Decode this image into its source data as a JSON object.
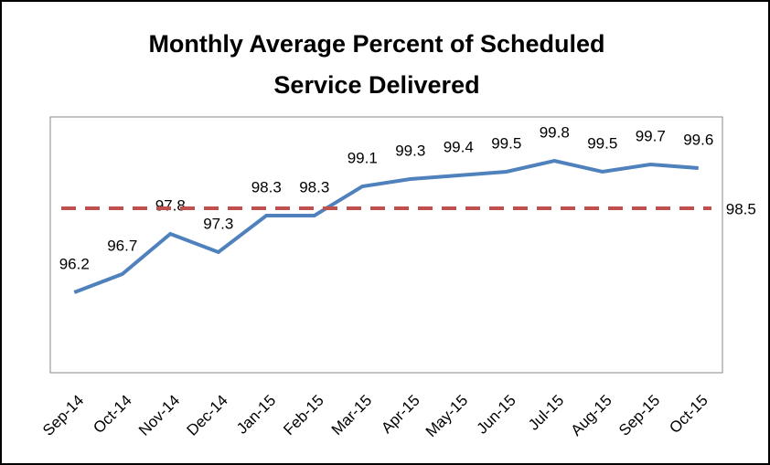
{
  "chart_data": {
    "type": "line",
    "title": [
      "Monthly Average Percent of Scheduled",
      "Service Delivered"
    ],
    "categories": [
      "Sep-14",
      "Oct-14",
      "Nov-14",
      "Dec-14",
      "Jan-15",
      "Feb-15",
      "Mar-15",
      "Apr-15",
      "May-15",
      "Jun-15",
      "Jul-15",
      "Aug-15",
      "Sep-15",
      "Oct-15"
    ],
    "series": [
      {
        "color": "#4f81bd",
        "dashed": false,
        "values": [
          96.2,
          96.7,
          97.8,
          97.3,
          98.3,
          98.3,
          99.1,
          99.3,
          99.4,
          99.5,
          99.8,
          99.5,
          99.7,
          99.6
        ]
      },
      {
        "color": "#c0504d",
        "dashed": true,
        "values": [
          98.5,
          98.5,
          98.5,
          98.5,
          98.5,
          98.5,
          98.5,
          98.5,
          98.5,
          98.5,
          98.5,
          98.5,
          98.5,
          98.5
        ]
      }
    ],
    "ylim": [
      94,
      101
    ],
    "grid": false
  }
}
